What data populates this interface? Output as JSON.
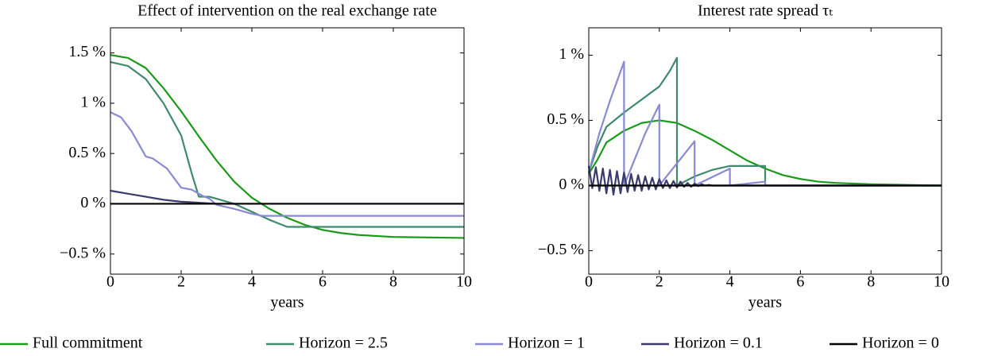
{
  "chart_data": [
    {
      "type": "line",
      "title": "Effect of intervention on the real exchange rate",
      "x_label": "years",
      "xlim": [
        0,
        10
      ],
      "xticks": [
        0,
        2,
        4,
        6,
        8,
        10
      ],
      "ylim": [
        -0.7,
        1.75
      ],
      "yticks": [
        {
          "value": -0.5,
          "label": "−0.5 %"
        },
        {
          "value": 0,
          "label": "0 %"
        },
        {
          "value": 0.5,
          "label": "0.5 %"
        },
        {
          "value": 1,
          "label": "1 %"
        },
        {
          "value": 1.5,
          "label": "1.5 %"
        }
      ],
      "series": [
        {
          "name": "Full commitment",
          "color": "#1a9a1a",
          "x": [
            0,
            0.5,
            1,
            1.5,
            2,
            2.5,
            3,
            3.5,
            4,
            4.5,
            5,
            5.5,
            6,
            6.5,
            7,
            7.5,
            8,
            9,
            10
          ],
          "values": [
            1.48,
            1.45,
            1.35,
            1.15,
            0.92,
            0.67,
            0.43,
            0.22,
            0.06,
            -0.05,
            -0.14,
            -0.21,
            -0.26,
            -0.29,
            -0.31,
            -0.32,
            -0.33,
            -0.335,
            -0.34
          ]
        },
        {
          "name": "Horizon = 2.5",
          "color": "#3f8a6a",
          "x": [
            0,
            0.5,
            1,
            1.5,
            2,
            2.3,
            2.5,
            2.8,
            3,
            3.5,
            4,
            4.5,
            5,
            10
          ],
          "values": [
            1.41,
            1.37,
            1.24,
            1.0,
            0.68,
            0.3,
            0.07,
            0.07,
            0.05,
            0.0,
            -0.08,
            -0.16,
            -0.23,
            -0.23
          ]
        },
        {
          "name": "Horizon = 1",
          "color": "#8a8ad4",
          "x": [
            0,
            0.3,
            0.6,
            1,
            1.2,
            1.6,
            2,
            2.3,
            2.6,
            2.8,
            3,
            3.5,
            4,
            4.3,
            10
          ],
          "values": [
            0.91,
            0.86,
            0.72,
            0.47,
            0.45,
            0.35,
            0.16,
            0.14,
            0.08,
            0.05,
            -0.01,
            -0.05,
            -0.1,
            -0.12,
            -0.12
          ]
        },
        {
          "name": "Horizon = 0.1",
          "color": "#3b3b6b",
          "x": [
            0,
            0.5,
            1,
            1.5,
            2,
            2.5,
            3,
            10
          ],
          "values": [
            0.13,
            0.1,
            0.07,
            0.04,
            0.02,
            0.01,
            0.0,
            0.0
          ]
        },
        {
          "name": "Horizon = 0",
          "color": "#000000",
          "x": [
            0,
            10
          ],
          "values": [
            0,
            0
          ]
        }
      ]
    },
    {
      "type": "line",
      "title": "Interest rate spread τₜ",
      "x_label": "years",
      "xlim": [
        0,
        10
      ],
      "xticks": [
        0,
        2,
        4,
        6,
        8,
        10
      ],
      "ylim": [
        -0.68,
        1.21
      ],
      "yticks": [
        {
          "value": -0.5,
          "label": "−0.5 %"
        },
        {
          "value": 0,
          "label": "0 %"
        },
        {
          "value": 0.5,
          "label": "0.5 %"
        },
        {
          "value": 1,
          "label": "1 %"
        }
      ],
      "series": [
        {
          "color": "#1a9a1a",
          "x": [
            0,
            0.25,
            0.5,
            1,
            1.5,
            2,
            2.5,
            3,
            3.5,
            4,
            4.5,
            5,
            5.5,
            6,
            6.5,
            7,
            8,
            10
          ],
          "values": [
            0.09,
            0.2,
            0.33,
            0.42,
            0.48,
            0.5,
            0.48,
            0.42,
            0.35,
            0.27,
            0.19,
            0.13,
            0.08,
            0.05,
            0.03,
            0.02,
            0.01,
            0.0
          ]
        },
        {
          "color": "#3f8a6a",
          "x": [
            0,
            0.25,
            0.5,
            1,
            1.5,
            2,
            2.3,
            2.5,
            2.5,
            3,
            3.5,
            4,
            5,
            5,
            10
          ],
          "values": [
            0.1,
            0.3,
            0.45,
            0.56,
            0.66,
            0.76,
            0.88,
            0.98,
            0.0,
            0.07,
            0.12,
            0.15,
            0.15,
            0.0,
            0.0
          ]
        },
        {
          "color": "#8a8ad4",
          "x": [
            0,
            0.3,
            0.6,
            1,
            1,
            1.3,
            1.6,
            2,
            2,
            3,
            3,
            4,
            4,
            5,
            5,
            10
          ],
          "values": [
            0.1,
            0.4,
            0.65,
            0.95,
            0.0,
            0.2,
            0.4,
            0.62,
            0.0,
            0.34,
            0.0,
            0.13,
            0.0,
            0.03,
            0.0,
            0.0
          ]
        },
        {
          "color": "#3b3b6b",
          "x": [
            0,
            0.1,
            0.2,
            0.3,
            0.4,
            0.5,
            0.6,
            0.7,
            0.8,
            0.9,
            1,
            1.1,
            1.2,
            1.3,
            1.4,
            1.5,
            1.6,
            1.7,
            1.8,
            1.9,
            2,
            2.1,
            2.2,
            2.3,
            2.4,
            2.5,
            2.6,
            2.7,
            2.8,
            2.9,
            3,
            3.1,
            3.2,
            3.3,
            3.4,
            3.5,
            3.6,
            10
          ],
          "values": [
            0.15,
            -0.02,
            0.14,
            -0.04,
            0.13,
            -0.06,
            0.12,
            -0.07,
            0.11,
            -0.06,
            0.1,
            -0.05,
            0.09,
            -0.04,
            0.08,
            -0.04,
            0.07,
            -0.03,
            0.06,
            -0.03,
            0.05,
            -0.02,
            0.04,
            -0.02,
            0.035,
            -0.015,
            0.03,
            -0.01,
            0.02,
            -0.01,
            0.015,
            -0.005,
            0.01,
            0,
            0.005,
            0,
            0,
            0
          ]
        },
        {
          "color": "#000000",
          "x": [
            0,
            10
          ],
          "values": [
            0,
            0
          ]
        }
      ]
    }
  ]
}
